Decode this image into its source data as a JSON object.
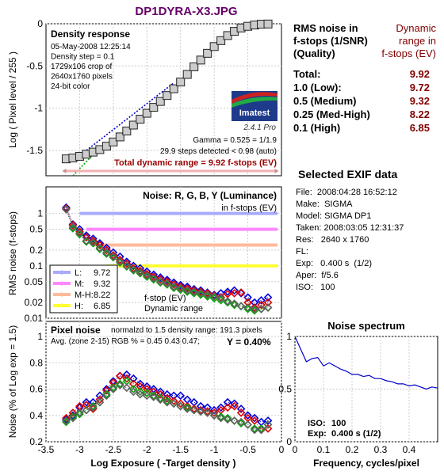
{
  "page_title": "DP1DYRA-X3.JPG",
  "rms_header": "RMS noise in\nf-stops (1/SNR)\n(Quality)",
  "dr_header": "Dynamic\nrange in\nf-stops (EV)",
  "dynamic_range_rows": [
    {
      "label": "Total:",
      "value": "9.92"
    },
    {
      "label": "1.0   (Low):",
      "value": "9.72"
    },
    {
      "label": "0.5   (Medium)",
      "value": "9.32"
    },
    {
      "label": "0.25 (Med-High)",
      "value": "8.22"
    },
    {
      "label": "0.1   (High)",
      "value": "6.85"
    }
  ],
  "exif": {
    "title": "Selected EXIF data",
    "rows": [
      "File:  2008:04:28 16:52:12",
      "Make:  SIGMA",
      "Model: SIGMA DP1",
      "Taken: 2008:03:05 12:31:37",
      "Res:   2640 x 1760",
      "FL:",
      "Exp:   0.400 s  (1/2)",
      "Aper:  f/5.6",
      "ISO:   100"
    ]
  },
  "colors": {
    "luminance": "#606060",
    "red": "#dd0000",
    "green": "#00aa00",
    "blue": "#0000dd",
    "L": "#aaaaff",
    "M": "#ff88ff",
    "MH": "#ffbb99",
    "H": "#ffff33",
    "dr_red": "#800000"
  },
  "logo": {
    "name": "Imatest",
    "version": "2.4.1  Pro"
  },
  "chart_data": [
    {
      "type": "line",
      "panel": "density",
      "title": "Density response",
      "info": [
        "05-May-2008 12:25:14",
        "Density step = 0.1",
        "1729x106 crop of",
        "2640x1760 pixels",
        "24-bit color"
      ],
      "ylabel": "Log ( Pixel level / 255 )",
      "xlim": [
        -3.5,
        0
      ],
      "ylim": [
        -1.8,
        0
      ],
      "yticks": [
        0,
        -0.5,
        -1,
        -1.5
      ],
      "ytick_labels": [
        "0",
        "-0.5",
        "-1",
        "-1.5"
      ],
      "gamma_text": "Gamma = 0.525 = 1/1.9",
      "steps_text": "29.9 steps detected < 0.98 (auto)",
      "total_dr_text": "Total dynamic range = 9.92 f-stops (EV)",
      "x": [
        -3.2,
        -3.1,
        -3.0,
        -2.9,
        -2.8,
        -2.7,
        -2.6,
        -2.5,
        -2.4,
        -2.3,
        -2.2,
        -2.1,
        -2.0,
        -1.9,
        -1.8,
        -1.7,
        -1.6,
        -1.5,
        -1.4,
        -1.3,
        -1.2,
        -1.1,
        -1.0,
        -0.9,
        -0.8,
        -0.7,
        -0.6,
        -0.5,
        -0.4,
        -0.3,
        -0.2
      ],
      "y": [
        -1.6,
        -1.59,
        -1.57,
        -1.545,
        -1.52,
        -1.49,
        -1.45,
        -1.4,
        -1.34,
        -1.27,
        -1.2,
        -1.13,
        -1.06,
        -0.99,
        -0.92,
        -0.85,
        -0.77,
        -0.69,
        -0.6,
        -0.51,
        -0.43,
        -0.35,
        -0.27,
        -0.2,
        -0.14,
        -0.09,
        -0.05,
        -0.03,
        -0.015,
        -0.005,
        -0.003
      ]
    },
    {
      "type": "line",
      "panel": "noise",
      "title": "Noise: R, G, B, Y (Luminance)",
      "subtitle": "in f-stops (EV)",
      "ylabel": "RMS noise (f-stops)",
      "yscale": "log",
      "ylim": [
        0.01,
        1.4
      ],
      "yticks": [
        1,
        0.5,
        0.2,
        0.1,
        0.05,
        0.02,
        0.01
      ],
      "ytick_labels": [
        "1",
        "0.5",
        "0.2",
        "0.1",
        "0.05",
        "0.02",
        "0.01"
      ],
      "legend": [
        {
          "key": "L",
          "label": "L:",
          "value": "9.72"
        },
        {
          "key": "M",
          "label": "M:",
          "value": "9.32"
        },
        {
          "key": "MH",
          "label": "M-H:",
          "value": "8.22"
        },
        {
          "key": "H",
          "label": "H:",
          "value": "6.85"
        }
      ],
      "legend_position": "lower-left",
      "thresholds": [
        {
          "key": "L",
          "y": 1.0,
          "x_start": -3.0
        },
        {
          "key": "M",
          "y": 0.5,
          "x_start": -2.9
        },
        {
          "key": "MH",
          "y": 0.25,
          "x_start": -2.8
        },
        {
          "key": "H",
          "y": 0.1,
          "x_start": -2.6
        }
      ],
      "annotation": [
        "f-stop (EV)",
        "Dynamic range"
      ],
      "x": [
        -3.2,
        -3.1,
        -3.0,
        -2.9,
        -2.8,
        -2.7,
        -2.6,
        -2.5,
        -2.4,
        -2.3,
        -2.2,
        -2.1,
        -2.0,
        -1.9,
        -1.8,
        -1.7,
        -1.6,
        -1.5,
        -1.4,
        -1.3,
        -1.2,
        -1.1,
        -1.0,
        -0.9,
        -0.8,
        -0.7,
        -0.6,
        -0.5,
        -0.4,
        -0.3,
        -0.2
      ],
      "series": [
        {
          "name": "Y",
          "values": [
            1.2,
            0.55,
            0.42,
            0.3,
            0.28,
            0.22,
            0.18,
            0.15,
            0.12,
            0.1,
            0.085,
            0.075,
            0.065,
            0.058,
            0.05,
            0.046,
            0.04,
            0.037,
            0.034,
            0.032,
            0.03,
            0.028,
            0.026,
            0.024,
            0.021,
            0.019,
            0.017,
            0.016,
            0.015,
            0.015,
            0.016
          ]
        },
        {
          "name": "R",
          "values": [
            1.25,
            0.6,
            0.45,
            0.35,
            0.3,
            0.25,
            0.2,
            0.16,
            0.13,
            0.11,
            0.09,
            0.08,
            0.07,
            0.062,
            0.055,
            0.05,
            0.044,
            0.04,
            0.037,
            0.034,
            0.032,
            0.03,
            0.027,
            0.025,
            0.029,
            0.03,
            0.031,
            0.02,
            0.016,
            0.018,
            0.02
          ]
        },
        {
          "name": "G",
          "values": [
            1.2,
            0.52,
            0.4,
            0.29,
            0.27,
            0.21,
            0.17,
            0.145,
            0.115,
            0.097,
            0.082,
            0.072,
            0.062,
            0.055,
            0.048,
            0.044,
            0.038,
            0.035,
            0.032,
            0.03,
            0.028,
            0.026,
            0.024,
            0.022,
            0.02,
            0.018,
            0.017,
            0.015,
            0.014,
            0.015,
            0.016
          ]
        },
        {
          "name": "B",
          "values": [
            1.3,
            0.62,
            0.5,
            0.38,
            0.33,
            0.27,
            0.22,
            0.18,
            0.15,
            0.12,
            0.1,
            0.09,
            0.078,
            0.068,
            0.06,
            0.054,
            0.048,
            0.043,
            0.04,
            0.036,
            0.034,
            0.031,
            0.028,
            0.03,
            0.032,
            0.034,
            0.03,
            0.025,
            0.02,
            0.022,
            0.025
          ]
        }
      ]
    },
    {
      "type": "line",
      "panel": "pixel-noise",
      "title": "Pixel noise",
      "subtitle": "normalzd to 1.5 density range: 191.3 pixels",
      "avg_text": "Avg. (zone 2-15) RGB % = 0.45  0.43  0.47;",
      "y_text": "Y = 0.40%",
      "ylabel": "Noise (% of Log exp = 1.5)",
      "xlabel": "Log Exposure ( -Target density )",
      "xlim": [
        -3.5,
        0
      ],
      "xticks": [
        -3.5,
        -3,
        -2.5,
        -2,
        -1.5,
        -1,
        -0.5,
        0
      ],
      "xtick_labels": [
        "-3.5",
        "-3",
        "-2.5",
        "-2",
        "-1.5",
        "-1",
        "-0.5",
        "0"
      ],
      "ylim": [
        0.2,
        1.0
      ],
      "yticks": [
        1,
        0.8,
        0.6,
        0.4,
        0.2
      ],
      "ytick_labels": [
        "1",
        "0.8",
        "0.6",
        "0.4",
        "0.2"
      ],
      "x": [
        -3.2,
        -3.1,
        -3.0,
        -2.9,
        -2.8,
        -2.7,
        -2.6,
        -2.5,
        -2.4,
        -2.3,
        -2.2,
        -2.1,
        -2.0,
        -1.9,
        -1.8,
        -1.7,
        -1.6,
        -1.5,
        -1.4,
        -1.3,
        -1.2,
        -1.1,
        -1.0,
        -0.9,
        -0.8,
        -0.7,
        -0.6,
        -0.5,
        -0.4,
        -0.3,
        -0.2
      ],
      "series": [
        {
          "name": "Y",
          "values": [
            0.36,
            0.38,
            0.42,
            0.44,
            0.46,
            0.5,
            0.55,
            0.6,
            0.63,
            0.61,
            0.58,
            0.56,
            0.55,
            0.54,
            0.52,
            0.5,
            0.49,
            0.47,
            0.45,
            0.44,
            0.43,
            0.42,
            0.4,
            0.38,
            0.37,
            0.36,
            0.35,
            0.33,
            0.29,
            0.29,
            0.33
          ]
        },
        {
          "name": "R",
          "values": [
            0.38,
            0.42,
            0.47,
            0.48,
            0.45,
            0.52,
            0.59,
            0.65,
            0.7,
            0.68,
            0.64,
            0.62,
            0.6,
            0.58,
            0.56,
            0.53,
            0.51,
            0.49,
            0.47,
            0.45,
            0.44,
            0.43,
            0.42,
            0.44,
            0.46,
            0.47,
            0.42,
            0.38,
            0.36,
            0.29,
            0.3
          ]
        },
        {
          "name": "G",
          "values": [
            0.35,
            0.39,
            0.41,
            0.44,
            0.47,
            0.5,
            0.56,
            0.61,
            0.64,
            0.66,
            0.6,
            0.58,
            0.57,
            0.55,
            0.53,
            0.51,
            0.49,
            0.47,
            0.46,
            0.44,
            0.43,
            0.42,
            0.4,
            0.39,
            0.38,
            0.36,
            0.34,
            0.33,
            0.3,
            0.3,
            0.33
          ]
        },
        {
          "name": "B",
          "values": [
            0.37,
            0.4,
            0.46,
            0.5,
            0.5,
            0.55,
            0.6,
            0.66,
            0.7,
            0.71,
            0.68,
            0.64,
            0.62,
            0.6,
            0.58,
            0.56,
            0.55,
            0.55,
            0.52,
            0.5,
            0.47,
            0.46,
            0.44,
            0.46,
            0.5,
            0.49,
            0.45,
            0.4,
            0.38,
            0.35,
            0.36
          ]
        }
      ]
    },
    {
      "type": "line",
      "panel": "spectrum",
      "title": "Noise spectrum",
      "xlabel": "Frequency, cycles/pixel",
      "xlim": [
        0,
        0.5
      ],
      "xticks": [
        0,
        0.1,
        0.2,
        0.3,
        0.4
      ],
      "xtick_labels": [
        "0",
        "0.1",
        "0.2",
        "0.3",
        "0.4"
      ],
      "ylim": [
        0,
        1
      ],
      "yticks": [
        1,
        0.5,
        0
      ],
      "ytick_labels": [
        "1",
        "0.5",
        "0"
      ],
      "iso_label": "ISO:",
      "iso_value": "100",
      "exp_label": "Exp:",
      "exp_value": "0.400 s  (1/2)",
      "x": [
        0,
        0.02,
        0.04,
        0.06,
        0.08,
        0.1,
        0.12,
        0.14,
        0.16,
        0.18,
        0.2,
        0.22,
        0.24,
        0.26,
        0.28,
        0.3,
        0.32,
        0.34,
        0.36,
        0.38,
        0.4,
        0.42,
        0.44,
        0.46,
        0.48,
        0.5
      ],
      "y": [
        1.0,
        0.88,
        0.76,
        0.79,
        0.8,
        0.72,
        0.75,
        0.72,
        0.69,
        0.67,
        0.64,
        0.64,
        0.62,
        0.63,
        0.6,
        0.6,
        0.58,
        0.57,
        0.55,
        0.55,
        0.53,
        0.54,
        0.52,
        0.5,
        0.52,
        0.51
      ]
    }
  ]
}
